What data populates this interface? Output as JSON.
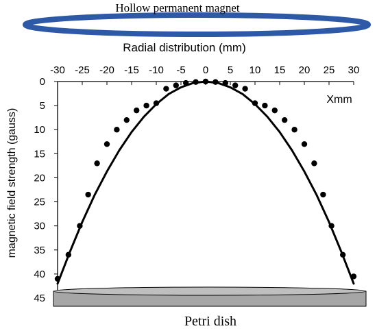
{
  "magnet_label": "Hollow permanent magnet",
  "dish_label": "Petri dish",
  "colors": {
    "magnet": "#2e59a6",
    "magnet_stroke": "#1e4182",
    "dish_fill": "#a6a6a6",
    "dish_top": "#bfbfbf",
    "marks": "#000000"
  },
  "chart_data": {
    "type": "scatter",
    "title": "",
    "xlabel": "Radial distribution (mm)",
    "ylabel": "magnetic field strength (gauss)",
    "axis_annotation": "Xmm",
    "x_axis_position": "top",
    "y_axis_inverted": true,
    "xlim": [
      -30,
      30
    ],
    "ylim": [
      0,
      45
    ],
    "x_ticks": [
      -30,
      -25,
      -20,
      -15,
      -10,
      -5,
      0,
      5,
      10,
      15,
      20,
      25,
      30
    ],
    "y_ticks": [
      0,
      5,
      10,
      15,
      20,
      25,
      30,
      35,
      40,
      45
    ],
    "grid": false,
    "series": [
      {
        "kind": "points",
        "x": [
          -30,
          -27.8,
          -25.5,
          -23.8,
          -22,
          -20,
          -18,
          -16,
          -14,
          -12,
          -10,
          -8,
          -6,
          -4,
          -2,
          0,
          2,
          4,
          6,
          8,
          10,
          12,
          14,
          16,
          18,
          20,
          22,
          23.8,
          25.5,
          27.8,
          30
        ],
        "y": [
          41,
          36,
          30,
          23.5,
          17,
          13,
          10,
          8,
          6,
          5,
          4.5,
          1.5,
          0.8,
          0.3,
          0.1,
          0,
          0.1,
          0.3,
          0.8,
          1.5,
          4.5,
          5,
          6,
          8,
          10,
          13,
          17,
          23.5,
          30,
          36,
          40.5
        ]
      },
      {
        "kind": "fit-curve",
        "x": [
          -30,
          -27.5,
          -25,
          -22.5,
          -20,
          -17.5,
          -15,
          -12.5,
          -10,
          -7.5,
          -5,
          -2.5,
          0,
          2.5,
          5,
          7.5,
          10,
          12.5,
          15,
          17.5,
          20,
          22.5,
          25,
          27.5,
          30
        ],
        "y": [
          42,
          35.4,
          29.2,
          23.6,
          18.7,
          14.3,
          10.5,
          7.3,
          4.7,
          2.6,
          1.2,
          0.3,
          0,
          0.3,
          1.2,
          2.6,
          4.7,
          7.3,
          10.5,
          14.3,
          18.7,
          23.6,
          29.2,
          35.4,
          42
        ]
      }
    ]
  }
}
